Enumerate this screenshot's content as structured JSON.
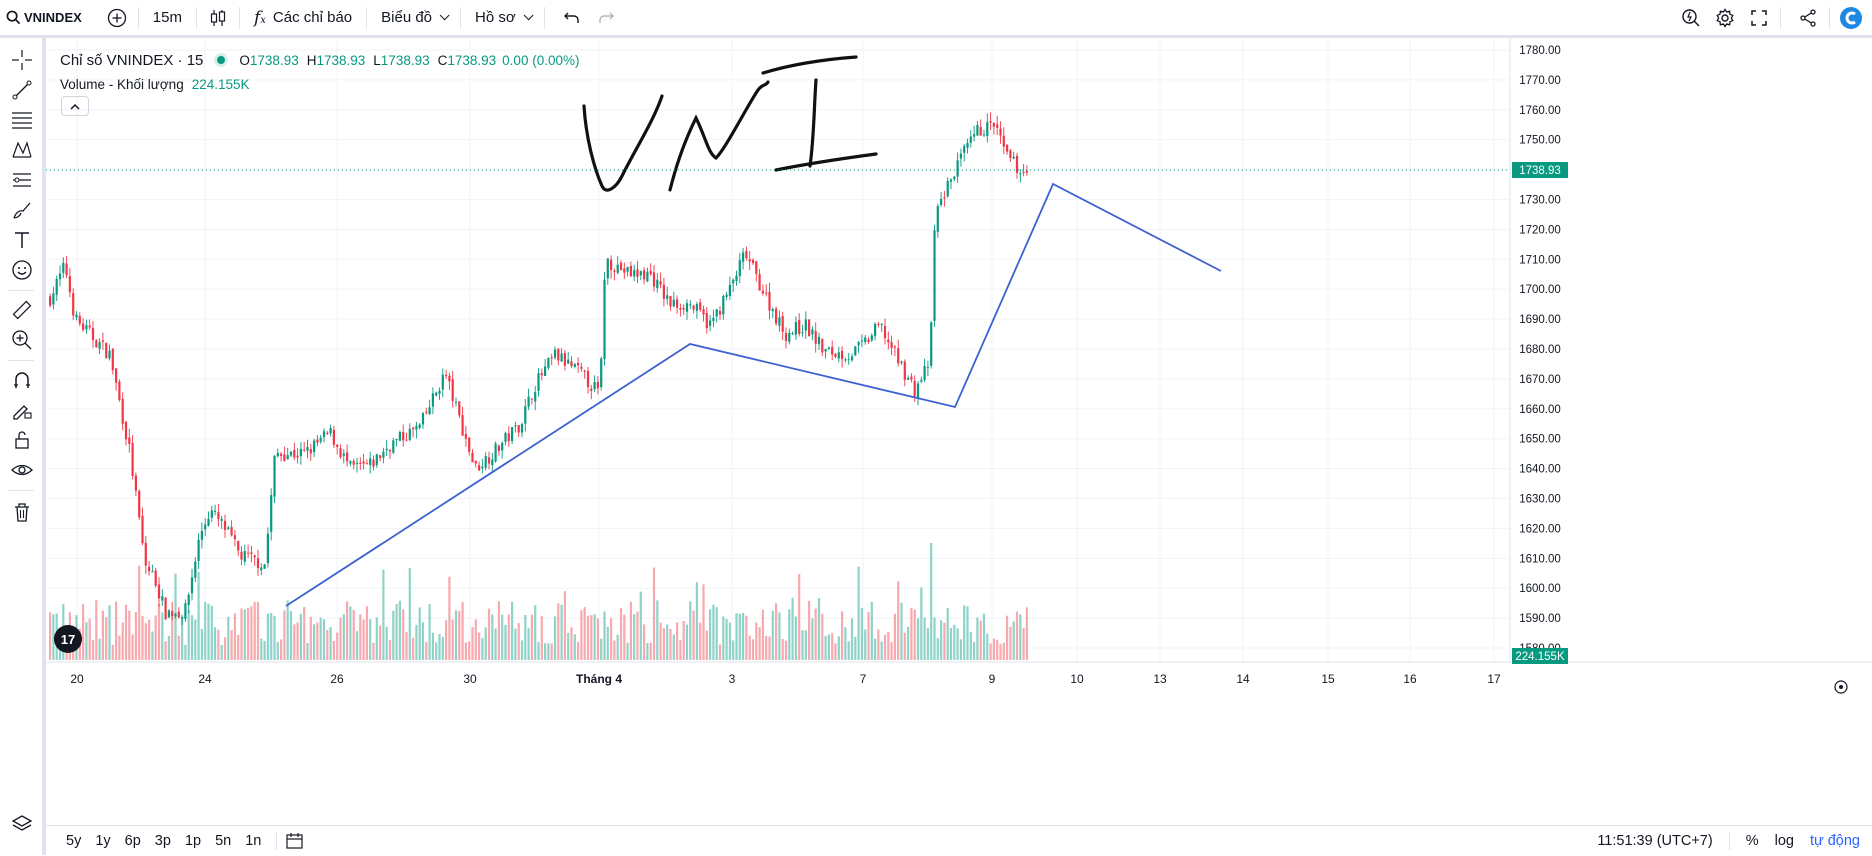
{
  "toolbar": {
    "symbol": "VNINDEX",
    "interval": "15m",
    "indicators_label": "Các chỉ báo",
    "chart_menu_label": "Biểu đồ",
    "profile_menu_label": "Hồ sơ",
    "icons": [
      "search-icon",
      "add-symbol-icon",
      "candle-type-icon",
      "indicators-icon",
      "undo-icon",
      "redo-icon",
      "quick-search-icon",
      "settings-icon",
      "fullscreen-icon",
      "share-icon",
      "app-logo-icon"
    ]
  },
  "legend": {
    "title": "Chỉ số VNINDEX · 15",
    "ohlc": [
      {
        "k": "O",
        "v": "1738.93"
      },
      {
        "k": "H",
        "v": "1738.93"
      },
      {
        "k": "L",
        "v": "1738.93"
      },
      {
        "k": "C",
        "v": "1738.93"
      },
      {
        "k": "",
        "v": "0.00 (0.00%)"
      }
    ],
    "volume_label": "Volume - Khối lượng",
    "volume_value": "224.155K"
  },
  "price_axis": {
    "ticks": [
      "1780.00",
      "1770.00",
      "1760.00",
      "1750.00",
      "1740.00",
      "1730.00",
      "1720.00",
      "1710.00",
      "1700.00",
      "1690.00",
      "1680.00",
      "1670.00",
      "1660.00",
      "1650.00",
      "1640.00",
      "1630.00",
      "1620.00",
      "1610.00",
      "1600.00",
      "1590.00",
      "1580.00"
    ],
    "last_price": "1738.93",
    "last_volume": "224.155K"
  },
  "time_axis": {
    "ticks": [
      "20",
      "24",
      "26",
      "30",
      "Tháng 4",
      "3",
      "7",
      "9",
      "10",
      "13",
      "14",
      "15",
      "16",
      "17"
    ]
  },
  "bottom": {
    "ranges": [
      "5y",
      "1y",
      "6p",
      "3p",
      "1p",
      "5n",
      "1n"
    ],
    "clock": "11:51:39 (UTC+7)",
    "percent": "%",
    "log": "log",
    "auto": "tự động"
  },
  "colors": {
    "up": "#089981",
    "down": "#f23645",
    "vol_up": "#8fd3c8",
    "vol_down": "#f7a9ae",
    "drawing_line": "#3c62d0",
    "last_price_bg": "#089981"
  },
  "chart_data": {
    "type": "candlestick",
    "symbol": "VNINDEX",
    "interval": "15m",
    "ylim": [
      1576,
      1784
    ],
    "session_x_labels": [
      "20",
      "24",
      "26",
      "30",
      "Tháng 4",
      "3",
      "7",
      "9"
    ],
    "session_closes": [
      1700,
      1610,
      1645,
      1650,
      1680,
      1700,
      1668,
      1738.93
    ],
    "last": {
      "open": 1738.93,
      "high": 1738.93,
      "low": 1738.93,
      "close": 1738.93,
      "volume": "224.155K"
    },
    "drawn_trend_line_prices": [
      1588,
      1678,
      1657,
      1734,
      1703
    ]
  }
}
